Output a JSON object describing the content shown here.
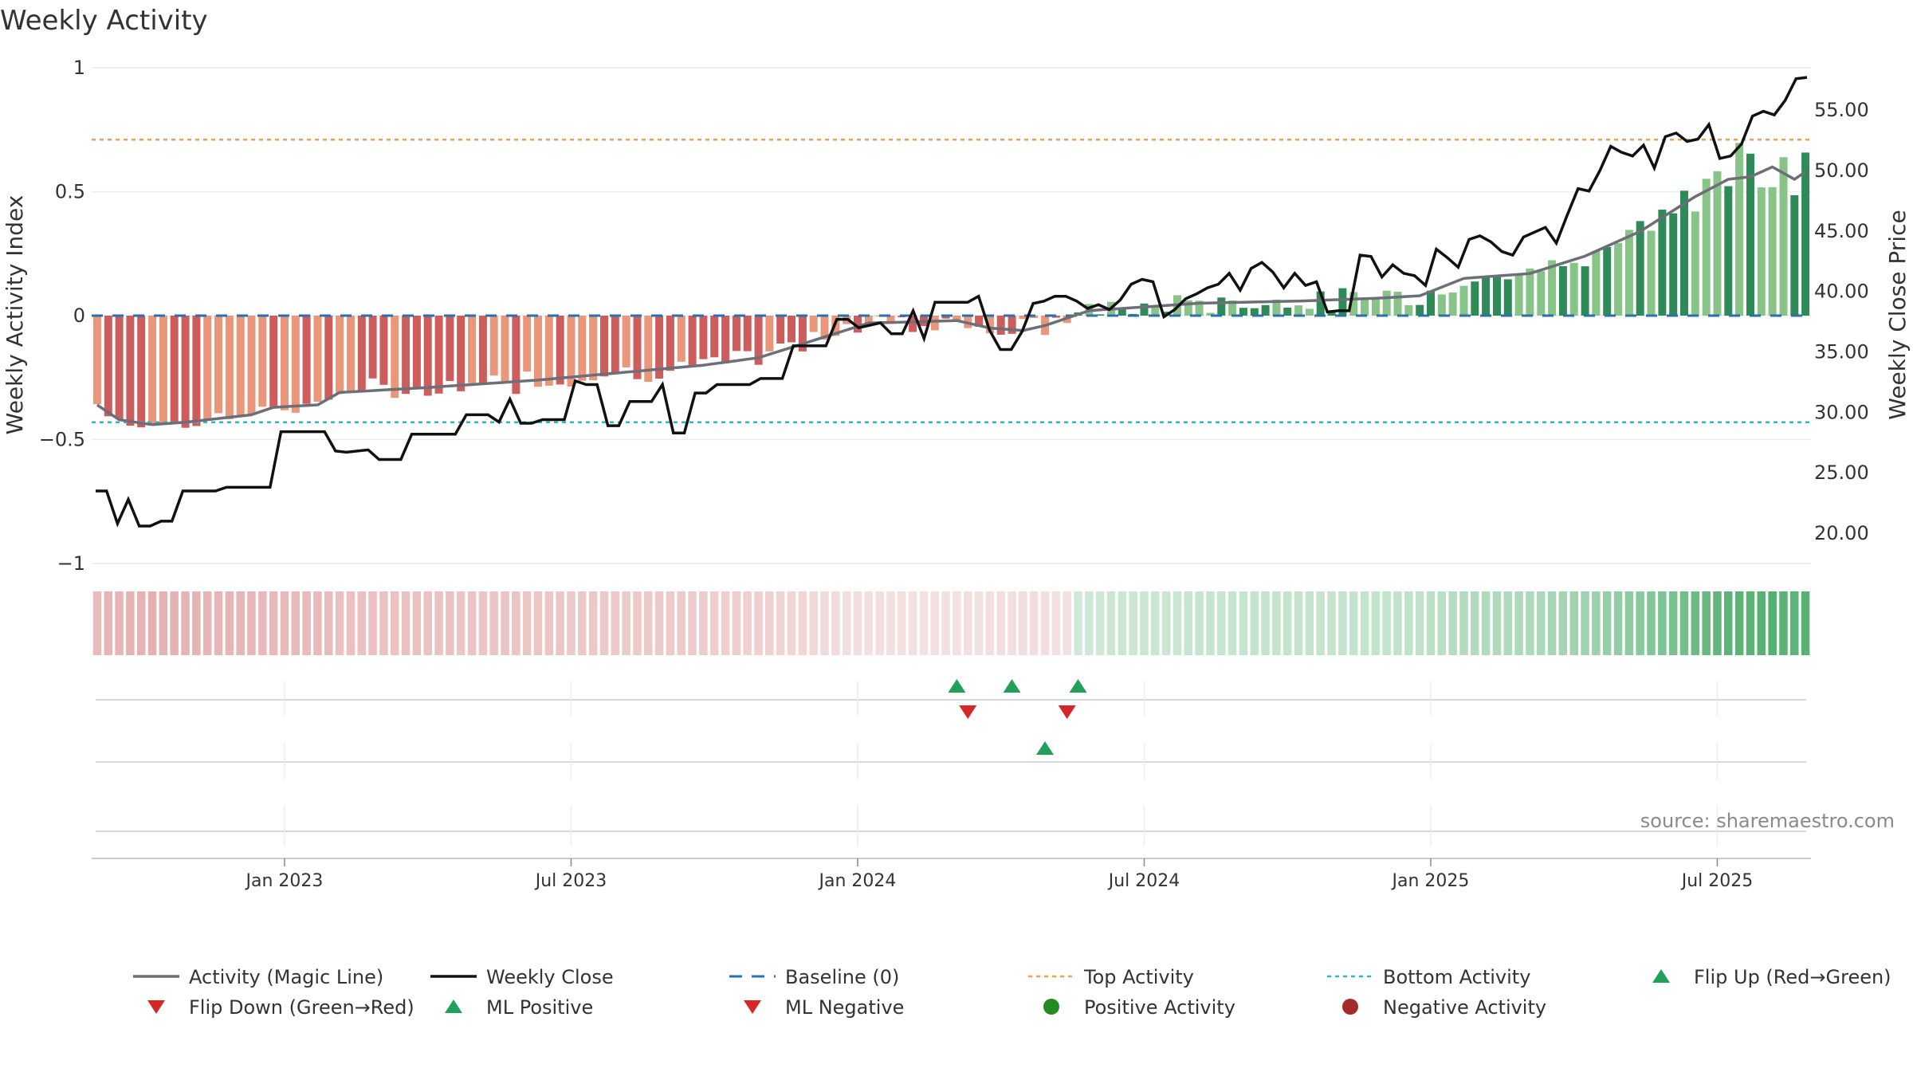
{
  "chart_data": {
    "type": "bar",
    "title": "Weekly Activity",
    "ylabel": "Weekly Activity Index",
    "y2label": "Weekly Close Price",
    "ylim": [
      -1,
      1
    ],
    "y2lim": [
      17.5,
      58.5
    ],
    "y_ticks": [
      1,
      0.5,
      0,
      -0.5,
      -1
    ],
    "y_tick_labels": [
      "1",
      "0.5",
      "0",
      "−0.5",
      "−1"
    ],
    "y2_ticks": [
      55,
      50,
      45,
      40,
      35,
      30,
      25,
      20
    ],
    "y2_tick_labels": [
      "55.00",
      "50.00",
      "45.00",
      "40.00",
      "35.00",
      "30.00",
      "25.00",
      "20.00"
    ],
    "x_tick_labels": [
      "Jan 2023",
      "Jul 2023",
      "Jan 2024",
      "Jul 2024",
      "Jan 2025",
      "Jul 2025"
    ],
    "x_tick_weeks": [
      17,
      43,
      69,
      95,
      121,
      147
    ],
    "weeks_count": 156,
    "top_activity": 0.71,
    "bottom_activity": -0.43,
    "baseline": 0,
    "activity_shape": [
      [
        0,
        -0.36
      ],
      [
        2,
        -0.42
      ],
      [
        5,
        -0.44
      ],
      [
        8,
        -0.43
      ],
      [
        14,
        -0.4
      ],
      [
        16,
        -0.37
      ],
      [
        20,
        -0.36
      ],
      [
        22,
        -0.31
      ],
      [
        30,
        -0.29
      ],
      [
        40,
        -0.26
      ],
      [
        50,
        -0.22
      ],
      [
        55,
        -0.2
      ],
      [
        60,
        -0.17
      ],
      [
        65,
        -0.1
      ],
      [
        70,
        -0.03
      ],
      [
        78,
        -0.02
      ],
      [
        81,
        -0.05
      ],
      [
        84,
        -0.06
      ],
      [
        86,
        -0.04
      ],
      [
        90,
        0.02
      ],
      [
        100,
        0.05
      ],
      [
        110,
        0.06
      ],
      [
        116,
        0.07
      ],
      [
        120,
        0.08
      ],
      [
        124,
        0.15
      ],
      [
        130,
        0.17
      ],
      [
        135,
        0.24
      ],
      [
        140,
        0.34
      ],
      [
        145,
        0.48
      ],
      [
        148,
        0.55
      ],
      [
        150,
        0.56
      ],
      [
        152,
        0.6
      ],
      [
        154,
        0.55
      ],
      [
        155,
        0.58
      ]
    ],
    "activity_noise": 0.025,
    "bar_strong_color_pos": "#2e8b57",
    "bar_weak_color_pos": "#88c487",
    "bar_strong_color_neg": "#cd5c5c",
    "bar_weak_color_neg": "#e9967a",
    "magic_line_color": "#6e6e78",
    "close_color": "#111111",
    "baseline_color": "#2a6fb0",
    "top_color": "#f0a050",
    "bottom_color": "#20c0c0",
    "close_shape": [
      [
        0,
        23.5
      ],
      [
        1,
        23.5
      ],
      [
        2,
        20.8
      ],
      [
        3,
        22.8
      ],
      [
        4,
        20.6
      ],
      [
        5,
        20.6
      ],
      [
        6,
        21
      ],
      [
        7,
        21
      ],
      [
        8,
        23.5
      ],
      [
        11,
        23.5
      ],
      [
        12,
        23.8
      ],
      [
        16,
        23.8
      ],
      [
        17,
        28.4
      ],
      [
        21,
        28.4
      ],
      [
        22,
        26.8
      ],
      [
        23,
        26.7
      ],
      [
        25,
        26.9
      ],
      [
        26,
        26.1
      ],
      [
        28,
        26.1
      ],
      [
        29,
        28.2
      ],
      [
        33,
        28.2
      ],
      [
        34,
        29.8
      ],
      [
        36,
        29.8
      ],
      [
        37,
        29.2
      ],
      [
        38,
        31.1
      ],
      [
        39,
        29.1
      ],
      [
        40,
        29.1
      ],
      [
        41,
        29.4
      ],
      [
        43,
        29.4
      ],
      [
        44,
        32.6
      ],
      [
        45,
        32.3
      ],
      [
        46,
        32.3
      ],
      [
        47,
        28.9
      ],
      [
        48,
        28.9
      ],
      [
        49,
        30.9
      ],
      [
        51,
        30.9
      ],
      [
        52,
        32.3
      ],
      [
        53,
        28.3
      ],
      [
        54,
        28.3
      ],
      [
        55,
        31.6
      ],
      [
        56,
        31.6
      ],
      [
        57,
        32.3
      ],
      [
        60,
        32.3
      ],
      [
        61,
        32.8
      ],
      [
        63,
        32.8
      ],
      [
        64,
        35.5
      ],
      [
        67,
        35.5
      ],
      [
        68,
        37.7
      ],
      [
        69,
        37.7
      ],
      [
        70,
        37.0
      ],
      [
        72,
        37.4
      ],
      [
        73,
        36.5
      ],
      [
        74,
        36.5
      ],
      [
        75,
        38.4
      ],
      [
        76,
        36.1
      ],
      [
        77,
        39.1
      ],
      [
        80,
        39.1
      ],
      [
        81,
        39.6
      ],
      [
        82,
        36.8
      ],
      [
        83,
        35.2
      ],
      [
        84,
        35.2
      ],
      [
        85,
        36.7
      ],
      [
        86,
        39.0
      ],
      [
        87,
        39.2
      ],
      [
        88,
        39.6
      ],
      [
        89,
        39.6
      ],
      [
        90,
        39.2
      ],
      [
        91,
        38.6
      ],
      [
        92,
        38.9
      ],
      [
        93,
        38.5
      ],
      [
        94,
        39.3
      ],
      [
        95,
        40.6
      ],
      [
        96,
        41.0
      ],
      [
        97,
        40.8
      ],
      [
        98,
        37.9
      ],
      [
        99,
        38.5
      ],
      [
        100,
        39.4
      ],
      [
        101,
        39.8
      ],
      [
        102,
        40.3
      ],
      [
        103,
        40.6
      ],
      [
        104,
        41.5
      ],
      [
        105,
        40.1
      ],
      [
        106,
        41.9
      ],
      [
        107,
        42.4
      ],
      [
        108,
        41.6
      ],
      [
        109,
        40.3
      ],
      [
        110,
        41.5
      ],
      [
        111,
        40.5
      ],
      [
        112,
        40.8
      ],
      [
        113,
        38.3
      ],
      [
        114,
        38.4
      ],
      [
        115,
        38.4
      ],
      [
        116,
        43.0
      ],
      [
        117,
        42.9
      ],
      [
        118,
        41.2
      ],
      [
        119,
        42.2
      ],
      [
        120,
        41.5
      ],
      [
        121,
        41.3
      ],
      [
        122,
        40.5
      ],
      [
        123,
        43.5
      ],
      [
        124,
        42.8
      ],
      [
        125,
        42.0
      ],
      [
        126,
        44.3
      ],
      [
        127,
        44.6
      ],
      [
        128,
        44.1
      ],
      [
        129,
        43.3
      ],
      [
        130,
        43.0
      ],
      [
        131,
        44.5
      ],
      [
        132,
        44.9
      ],
      [
        133,
        45.3
      ],
      [
        134,
        44.0
      ],
      [
        135,
        46.3
      ],
      [
        136,
        48.5
      ],
      [
        137,
        48.3
      ],
      [
        138,
        50.0
      ],
      [
        139,
        52.0
      ],
      [
        140,
        51.5
      ],
      [
        141,
        51.2
      ],
      [
        142,
        52.1
      ],
      [
        143,
        50.2
      ],
      [
        144,
        52.8
      ],
      [
        145,
        53.1
      ],
      [
        146,
        52.4
      ],
      [
        147,
        52.6
      ],
      [
        148,
        53.8
      ],
      [
        149,
        51.0
      ],
      [
        150,
        51.2
      ],
      [
        151,
        52.2
      ],
      [
        152,
        54.5
      ],
      [
        153,
        54.9
      ],
      [
        154,
        54.6
      ],
      [
        155,
        55.8
      ],
      [
        156,
        57.6
      ],
      [
        157,
        57.7
      ]
    ],
    "signals": {
      "flip_up_weeks": [
        78.5,
        83.5,
        89.5
      ],
      "flip_down_weeks": [
        79.5,
        88.5
      ],
      "ml_positive_weeks": [
        86.5
      ],
      "ml_negative_weeks": [],
      "positive_activity_weeks": [],
      "negative_activity_weeks": []
    },
    "source": "source: sharemaestro.com",
    "legend": [
      {
        "label": "Activity (Magic Line)",
        "marker": "line-solid",
        "color": "#6e6e78"
      },
      {
        "label": "Weekly Close",
        "marker": "line-solid",
        "color": "#111111"
      },
      {
        "label": "Baseline (0)",
        "marker": "line-dashed",
        "color": "#2a6fb0"
      },
      {
        "label": "Top Activity",
        "marker": "line-dotted",
        "color": "#f0a050"
      },
      {
        "label": "Bottom Activity",
        "marker": "line-dotted",
        "color": "#20c0c0"
      },
      {
        "label": "Flip Up (Red→Green)",
        "marker": "triangle-up",
        "color": "#22a05a"
      },
      {
        "label": "Flip Down (Green→Red)",
        "marker": "triangle-down",
        "color": "#d62728"
      },
      {
        "label": "ML Positive",
        "marker": "triangle-up",
        "color": "#22a05a"
      },
      {
        "label": "ML Negative",
        "marker": "triangle-down",
        "color": "#d62728"
      },
      {
        "label": "Positive Activity",
        "marker": "circle",
        "color": "#228b22"
      },
      {
        "label": "Negative Activity",
        "marker": "circle",
        "color": "#a52a2a"
      }
    ]
  }
}
